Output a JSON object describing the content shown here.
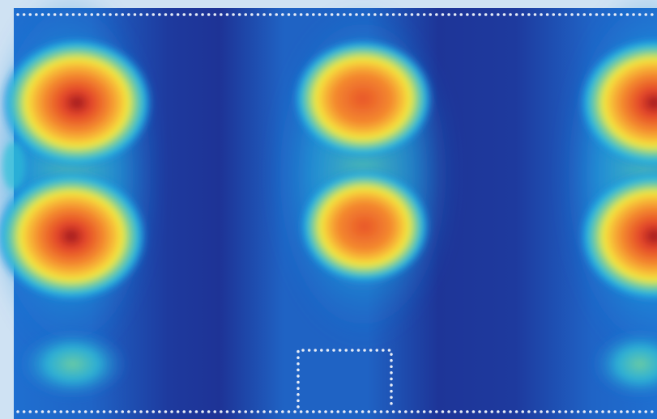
{
  "image": {
    "kind": "false-color intensity field",
    "palette": {
      "background_frame": "#cfe2f3",
      "deep": "#1e2f96",
      "mid_blue": "#1f5fc4",
      "cyan": "#1fb4e6",
      "green": "#7fcf8f",
      "yellow": "#f4ea3a",
      "orange": "#f4892e",
      "red": "#e2432a",
      "dark_red": "#9b1620",
      "dots": "#e6ecf7"
    },
    "features": {
      "hot_spots": 6,
      "weak_spots": 2,
      "dotted_guides": [
        "top-line",
        "bottom-line",
        "bottom-center-box"
      ]
    }
  }
}
